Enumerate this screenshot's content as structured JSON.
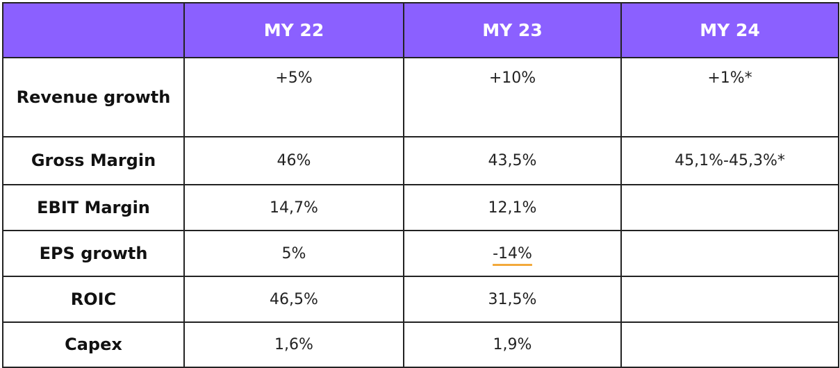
{
  "table": {
    "columns": [
      "",
      "MY 22",
      "MY 23",
      "MY 24"
    ],
    "rows": [
      {
        "label": "Revenue growth",
        "values": [
          "+5%",
          "+10%",
          "+1%*"
        ]
      },
      {
        "label": "Gross Margin",
        "values": [
          "46%",
          "43,5%",
          "45,1%-45,3%*"
        ]
      },
      {
        "label": "EBIT Margin",
        "values": [
          "14,7%",
          "12,1%",
          ""
        ]
      },
      {
        "label": "EPS growth",
        "values": [
          "5%",
          "-14%",
          ""
        ]
      },
      {
        "label": "ROIC",
        "values": [
          "46,5%",
          "31,5%",
          ""
        ]
      },
      {
        "label": "Capex",
        "values": [
          "1,6%",
          "1,9%",
          ""
        ]
      }
    ]
  },
  "colors": {
    "header_background": "#8b60ff",
    "header_text": "#ffffff",
    "border": "#222222",
    "highlight_underline": "#f2a93b"
  }
}
